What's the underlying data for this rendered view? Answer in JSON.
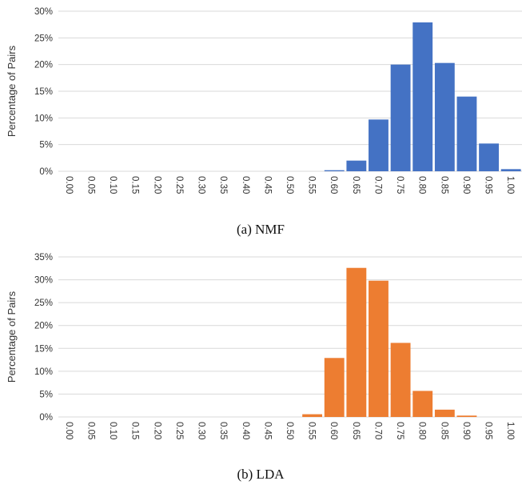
{
  "chart_data": [
    {
      "type": "bar",
      "caption": "(a) NMF",
      "ylabel": "Percentage of Pairs",
      "xlabel": "",
      "color": "#4472C4",
      "ylim": [
        0,
        30
      ],
      "yticks": [
        "0%",
        "5%",
        "10%",
        "15%",
        "20%",
        "25%",
        "30%"
      ],
      "categories": [
        "0.00",
        "0.05",
        "0.10",
        "0.15",
        "0.20",
        "0.25",
        "0.30",
        "0.35",
        "0.40",
        "0.45",
        "0.50",
        "0.55",
        "0.60",
        "0.65",
        "0.70",
        "0.75",
        "0.80",
        "0.85",
        "0.90",
        "0.95",
        "1.00"
      ],
      "values": [
        0,
        0,
        0,
        0,
        0,
        0,
        0,
        0,
        0,
        0,
        0,
        0,
        0.2,
        2.0,
        9.7,
        20.0,
        27.9,
        20.3,
        14.0,
        5.2,
        0.4
      ],
      "grid": true,
      "legend": "none"
    },
    {
      "type": "bar",
      "caption": "(b) LDA",
      "ylabel": "Percentage of Pairs",
      "xlabel": "",
      "color": "#ED7D31",
      "ylim": [
        0,
        35
      ],
      "yticks": [
        "0%",
        "5%",
        "10%",
        "15%",
        "20%",
        "25%",
        "30%",
        "35%"
      ],
      "categories": [
        "0.00",
        "0.05",
        "0.10",
        "0.15",
        "0.20",
        "0.25",
        "0.30",
        "0.35",
        "0.40",
        "0.45",
        "0.50",
        "0.55",
        "0.60",
        "0.65",
        "0.70",
        "0.75",
        "0.80",
        "0.85",
        "0.90",
        "0.95",
        "1.00"
      ],
      "values": [
        0,
        0,
        0,
        0,
        0,
        0,
        0,
        0,
        0,
        0,
        0,
        0.6,
        12.9,
        32.6,
        29.8,
        16.2,
        5.7,
        1.6,
        0.3,
        0,
        0
      ],
      "grid": true,
      "legend": "none"
    }
  ]
}
